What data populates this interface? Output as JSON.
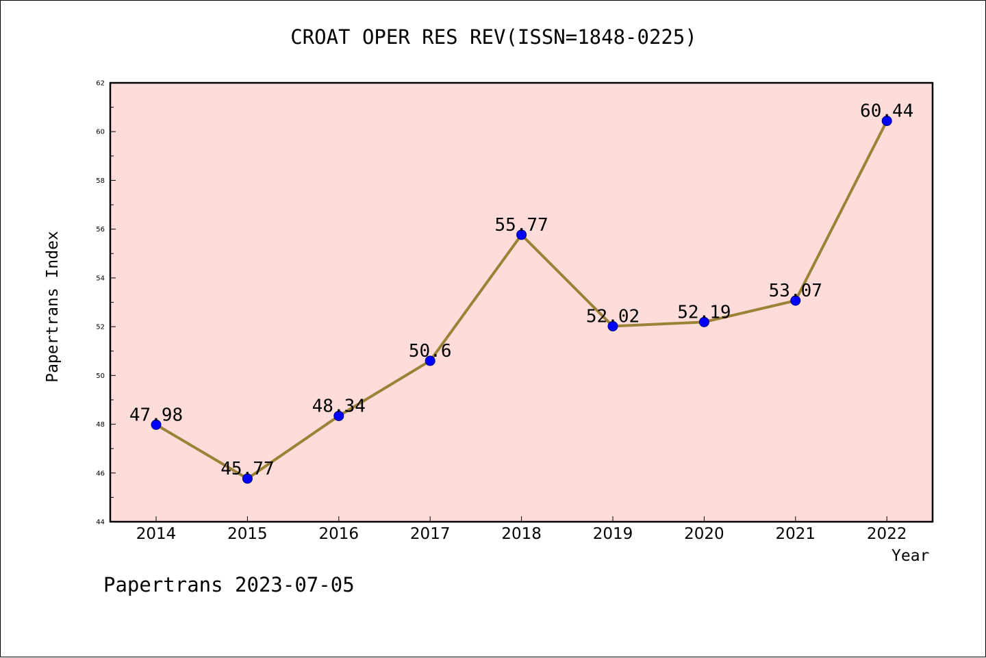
{
  "title": "CROAT OPER RES REV(ISSN=1848-0225)",
  "footer": "Papertrans 2023-07-05",
  "colors": {
    "plot_background": "#fddcd9",
    "line": "#9b8236",
    "marker": "#0000ff",
    "marker_edge": "#00007a"
  },
  "chart_data": {
    "type": "line",
    "xlabel": "Year",
    "ylabel": "Papertrans Index",
    "categories": [
      "2014",
      "2015",
      "2016",
      "2017",
      "2018",
      "2019",
      "2020",
      "2021",
      "2022"
    ],
    "values": [
      47.98,
      45.77,
      48.34,
      50.6,
      55.77,
      52.02,
      52.19,
      53.07,
      60.44
    ],
    "data_labels": [
      "47.98",
      "45.77",
      "48.34",
      "50.6",
      "55.77",
      "52.02",
      "52.19",
      "53.07",
      "60.44"
    ],
    "ylim": [
      44,
      62
    ],
    "yticks": [
      "44",
      "46",
      "48",
      "50",
      "52",
      "54",
      "56",
      "58",
      "60",
      "62"
    ],
    "grid": false,
    "legend": "none"
  }
}
